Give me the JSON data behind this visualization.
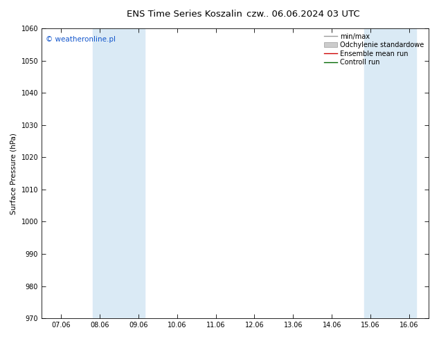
{
  "title_left": "ENS Time Series Koszalin",
  "title_right": "czw.. 06.06.2024 03 UTC",
  "ylabel": "Surface Pressure (hPa)",
  "ylim": [
    970,
    1060
  ],
  "yticks": [
    970,
    980,
    990,
    1000,
    1010,
    1020,
    1030,
    1040,
    1050,
    1060
  ],
  "xtick_labels": [
    "07.06",
    "08.06",
    "09.06",
    "10.06",
    "11.06",
    "12.06",
    "13.06",
    "14.06",
    "15.06",
    "16.06"
  ],
  "xtick_positions": [
    0,
    1,
    2,
    3,
    4,
    5,
    6,
    7,
    8,
    9
  ],
  "shaded_bands": [
    {
      "xstart": 0.83,
      "xend": 2.17
    },
    {
      "xstart": 7.83,
      "xend": 9.17
    }
  ],
  "shade_color": "#daeaf5",
  "watermark": "© weatheronline.pl",
  "watermark_color": "#1155cc",
  "background_color": "#ffffff",
  "plot_bg_color": "#ffffff",
  "title_fontsize": 9.5,
  "tick_fontsize": 7,
  "ylabel_fontsize": 7.5,
  "legend_fontsize": 7,
  "watermark_fontsize": 7.5
}
